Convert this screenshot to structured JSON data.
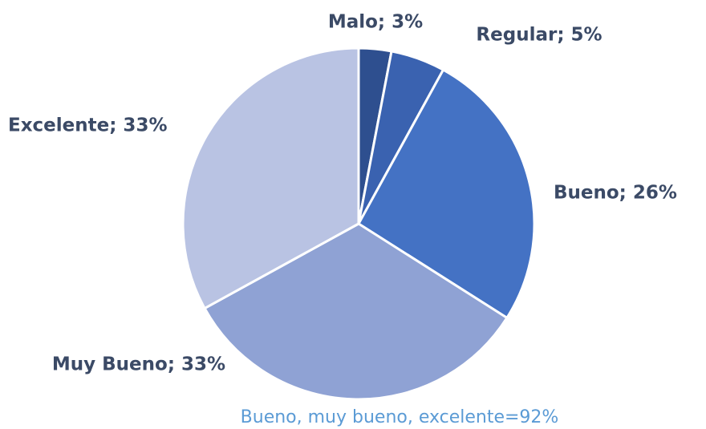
{
  "chart_data": {
    "type": "pie",
    "values": [
      3,
      5,
      26,
      33,
      33
    ],
    "value_labels": [
      "Malo; 3%",
      "Regular; 5%",
      "Bueno; 26%",
      "Muy Bueno; 33%",
      "Excelente; 33%"
    ],
    "colors": [
      "#2e4f8f",
      "#3a62b0",
      "#4472c4",
      "#8fa2d4",
      "#b9c3e3"
    ],
    "annotation": "Bueno, muy bueno, excelente=92%"
  }
}
